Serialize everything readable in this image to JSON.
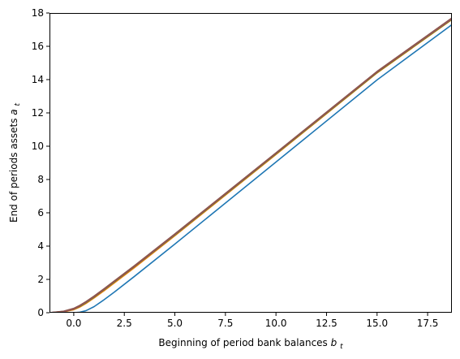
{
  "chart_data": {
    "type": "line",
    "title": "",
    "xlabel": "Beginning of period bank balances",
    "xlabel_sub": "t",
    "ylabel": "End of periods assets",
    "ylabel_sub": "t",
    "xlabel_var": "b",
    "ylabel_var": "a",
    "xlim": [
      -1.2,
      18.7
    ],
    "ylim": [
      0,
      18
    ],
    "x_ticks": [
      0.0,
      2.5,
      5.0,
      7.5,
      10.0,
      12.5,
      15.0,
      17.5
    ],
    "x_tick_labels": [
      "0.0",
      "2.5",
      "5.0",
      "7.5",
      "10.0",
      "12.5",
      "15.0",
      "17.5"
    ],
    "y_ticks": [
      0,
      2,
      4,
      6,
      8,
      10,
      12,
      14,
      16,
      18
    ],
    "y_tick_labels": [
      "0",
      "2",
      "4",
      "6",
      "8",
      "10",
      "12",
      "14",
      "16",
      "18"
    ],
    "grid": false,
    "legend": "none",
    "series": [
      {
        "color": "#1f77b4",
        "x": [
          -1.2,
          0.0,
          0.3,
          0.6,
          1.0,
          1.5,
          2.0,
          3.0,
          5.0,
          10.0,
          15.0,
          18.7
        ],
        "y": [
          0.0,
          0.0,
          0.03,
          0.12,
          0.36,
          0.78,
          1.23,
          2.18,
          4.12,
          9.05,
          13.98,
          17.3
        ]
      },
      {
        "color": "#ff7f0e",
        "x": [
          -1.2,
          -0.5,
          0.0,
          0.3,
          0.6,
          1.0,
          1.5,
          2.0,
          3.0,
          5.0,
          10.0,
          15.0,
          18.7
        ],
        "y": [
          0.0,
          0.05,
          0.18,
          0.34,
          0.55,
          0.88,
          1.32,
          1.78,
          2.7,
          4.62,
          9.5,
          14.4,
          17.6
        ]
      },
      {
        "color": "#2ca02c",
        "x": [
          -1.2,
          -0.5,
          0.0,
          0.3,
          0.6,
          1.0,
          1.5,
          2.0,
          3.0,
          5.0,
          10.0,
          15.0,
          18.7
        ],
        "y": [
          0.0,
          0.06,
          0.21,
          0.38,
          0.6,
          0.93,
          1.38,
          1.84,
          2.76,
          4.67,
          9.54,
          14.43,
          17.63
        ]
      },
      {
        "color": "#d62728",
        "x": [
          -1.2,
          -0.5,
          0.0,
          0.3,
          0.6,
          1.0,
          1.5,
          2.0,
          3.0,
          5.0,
          10.0,
          15.0,
          18.7
        ],
        "y": [
          0.0,
          0.07,
          0.23,
          0.41,
          0.63,
          0.96,
          1.41,
          1.87,
          2.79,
          4.7,
          9.57,
          14.46,
          17.66
        ]
      },
      {
        "color": "#9467bd",
        "x": [
          -1.2,
          -0.5,
          0.0,
          0.3,
          0.6,
          1.0,
          1.5,
          2.0,
          3.0,
          5.0,
          10.0,
          15.0,
          18.7
        ],
        "y": [
          0.0,
          0.08,
          0.25,
          0.43,
          0.65,
          0.98,
          1.43,
          1.89,
          2.81,
          4.72,
          9.59,
          14.48,
          17.68
        ]
      },
      {
        "color": "#8c564b",
        "x": [
          -1.2,
          -0.5,
          0.0,
          0.3,
          0.6,
          1.0,
          1.5,
          2.0,
          3.0,
          5.0,
          10.0,
          15.0,
          18.7
        ],
        "y": [
          0.0,
          0.09,
          0.26,
          0.44,
          0.66,
          0.99,
          1.44,
          1.9,
          2.82,
          4.73,
          9.6,
          14.49,
          17.7
        ]
      }
    ]
  }
}
